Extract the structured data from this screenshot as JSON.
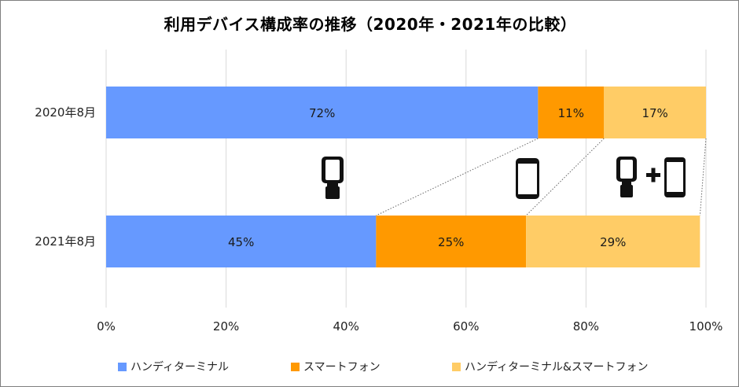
{
  "chart_data": {
    "type": "bar",
    "orientation": "horizontal",
    "stacked": true,
    "title": "利用デバイス構成率の推移（2020年・2021年の比較）",
    "categories": [
      "2020年8月",
      "2021年8月"
    ],
    "series": [
      {
        "name": "ハンディターミナル",
        "values": [
          72,
          45
        ],
        "labels": [
          "72%",
          "45%"
        ],
        "color": "#6699FF"
      },
      {
        "name": "スマートフォン",
        "values": [
          11,
          25
        ],
        "labels": [
          "11%",
          "25%"
        ],
        "color": "#FF9900"
      },
      {
        "name": "ハンディターミナル&スマートフォン",
        "values": [
          17,
          29
        ],
        "labels": [
          "17%",
          "29%"
        ],
        "color": "#FFCC66"
      }
    ],
    "xlim": [
      0,
      100
    ],
    "xticks": [
      0,
      20,
      40,
      60,
      80,
      100
    ],
    "xtick_labels": [
      "0%",
      "20%",
      "40%",
      "60%",
      "80%",
      "100%"
    ],
    "grid": true,
    "legend_position": "bottom",
    "series_connector_lines": "dotted",
    "icons": [
      "handy-terminal-icon",
      "smartphone-icon",
      "handy-terminal-plus-smartphone-icon"
    ]
  }
}
